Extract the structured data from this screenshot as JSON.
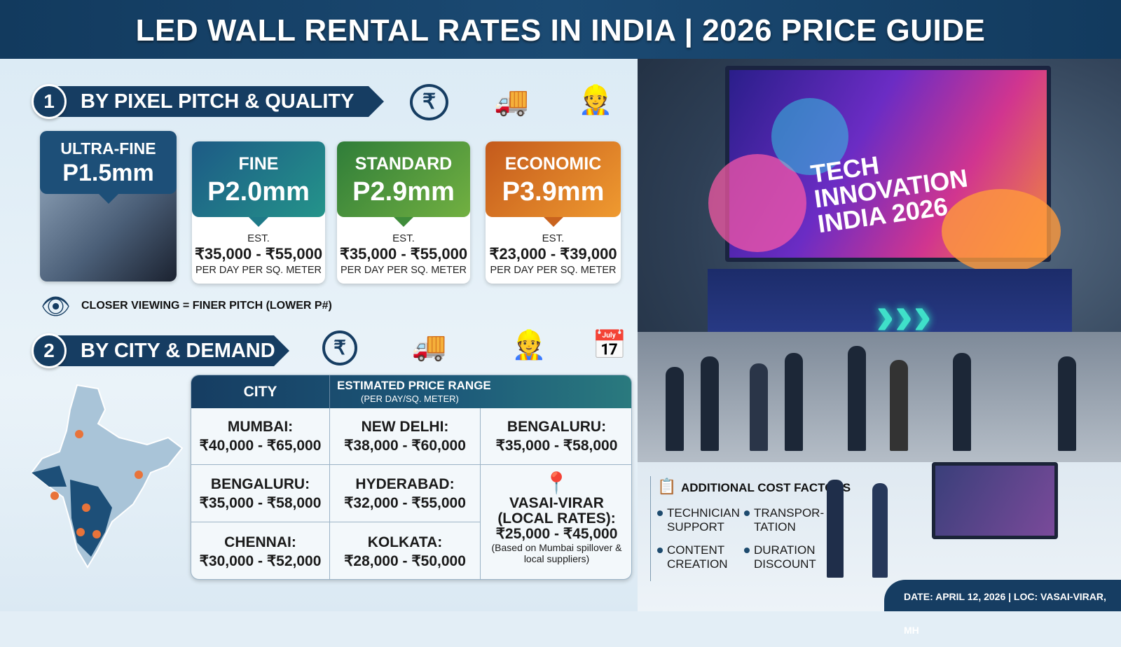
{
  "title": "LED WALL RENTAL RATES IN INDIA | 2026 PRICE GUIDE",
  "section1": {
    "number": "1",
    "heading": "BY PIXEL PITCH & QUALITY",
    "icons": [
      "rupee-icon",
      "delivery-truck-icon",
      "technician-growth-icon"
    ],
    "cards": [
      {
        "label": "ULTRA-FINE",
        "pitch": "P1.5mm",
        "color": "#1d4f78"
      },
      {
        "label": "FINE",
        "pitch": "P2.0mm",
        "est": "EST.",
        "price": "₹35,000 - ₹55,000",
        "unit": "PER DAY PER SQ. METER",
        "color": "#1f7487"
      },
      {
        "label": "STANDARD",
        "pitch": "P2.9mm",
        "est": "EST.",
        "price": "₹35,000 - ₹55,000",
        "unit": "PER DAY PER SQ. METER",
        "color": "#3f8c3a"
      },
      {
        "label": "ECONOMIC",
        "pitch": "P3.9mm",
        "est": "EST.",
        "price": "₹23,000 - ₹39,000",
        "unit": "PER DAY PER SQ. METER",
        "color": "#d06a1f"
      }
    ],
    "note": "CLOSER VIEWING = FINER PITCH (LOWER P#)"
  },
  "section2": {
    "number": "2",
    "heading": "BY CITY & DEMAND",
    "icons": [
      "rupee-icon",
      "rupee-truck-icon",
      "technician-icon",
      "calendar-clock-icon"
    ],
    "table": {
      "headers": {
        "city": "CITY",
        "range": "ESTIMATED PRICE RANGE",
        "range_sub": "(PER DAY/SQ. METER)"
      },
      "cells": [
        {
          "city": "MUMBAI:",
          "price": "₹40,000 - ₹65,000"
        },
        {
          "city": "NEW DELHI:",
          "price": "₹38,000 - ₹60,000"
        },
        {
          "city": "BENGALURU:",
          "price": "₹35,000 - ₹58,000"
        },
        {
          "city": "BENGALURU:",
          "price": "₹35,000 - ₹58,000"
        },
        {
          "city": "HYDERABAD:",
          "price": "₹32,000 - ₹55,000"
        },
        {
          "city": "CHENNAI:",
          "price": "₹30,000 - ₹52,000"
        },
        {
          "city": "KOLKATA:",
          "price": "₹28,000 - ₹50,000"
        }
      ],
      "local": {
        "city": "VASAI-VIRAR",
        "sub": "(LOCAL RATES):",
        "price": "₹25,000 - ₹45,000",
        "note": "(Based on Mumbai spillover & local suppliers)"
      }
    }
  },
  "photo": {
    "screen_text": "TECH INNOVATION INDIA 2026"
  },
  "cost_factors": {
    "heading": "ADDITIONAL COST FACTORS",
    "items": [
      "TECHNICIAN SUPPORT",
      "TRANSPOR-TATION",
      "CONTENT CREATION",
      "DURATION DISCOUNT"
    ]
  },
  "footer": "DATE: APRIL 12, 2026 | LOC: VASAI-VIRAR, MH",
  "colors": {
    "navy": "#163d62",
    "accent_orange": "#e8733a"
  }
}
